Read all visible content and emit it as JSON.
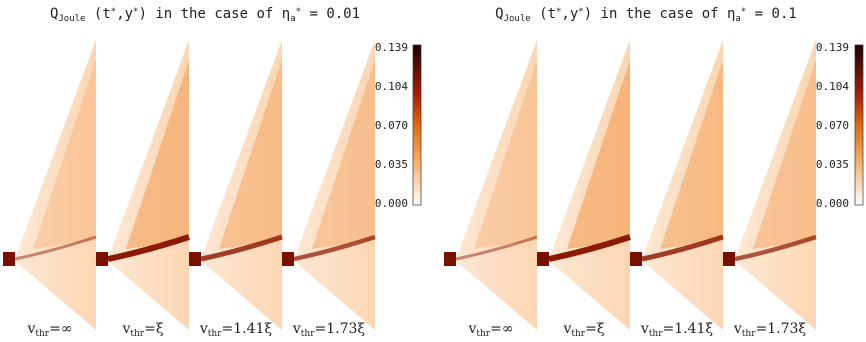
{
  "figures": [
    {
      "title": [
        {
          "t": "Q"
        },
        {
          "sub": "Joule"
        },
        {
          "t": " (t"
        },
        {
          "sup": "*"
        },
        {
          "t": ",y"
        },
        {
          "sup": "*"
        },
        {
          "t": ") in the case of η"
        },
        {
          "sub": "a"
        },
        {
          "sup": "*"
        },
        {
          "t": " = 0.01"
        }
      ],
      "panels": [
        [
          {
            "t": "v"
          },
          {
            "sub": "thr"
          },
          {
            "t": "=∞"
          }
        ],
        [
          {
            "t": "v"
          },
          {
            "sub": "thr"
          },
          {
            "t": "=ξ"
          }
        ],
        [
          {
            "t": "v"
          },
          {
            "sub": "thr"
          },
          {
            "t": "=1.41ξ"
          }
        ],
        [
          {
            "t": "v"
          },
          {
            "sub": "thr"
          },
          {
            "t": "=1.73ξ"
          }
        ]
      ],
      "colorbar": [
        "0.139",
        "0.104",
        "0.070",
        "0.035",
        "0.000"
      ]
    },
    {
      "title": [
        {
          "t": "Q"
        },
        {
          "sub": "Joule"
        },
        {
          "t": " (t"
        },
        {
          "sup": "*"
        },
        {
          "t": ",y"
        },
        {
          "sup": "*"
        },
        {
          "t": ") in the case of η"
        },
        {
          "sub": "a"
        },
        {
          "sup": "*"
        },
        {
          "t": " = 0.1"
        }
      ],
      "panels": [
        [
          {
            "t": "v"
          },
          {
            "sub": "thr"
          },
          {
            "t": "=∞"
          }
        ],
        [
          {
            "t": "v"
          },
          {
            "sub": "thr"
          },
          {
            "t": "=ξ"
          }
        ],
        [
          {
            "t": "v"
          },
          {
            "sub": "thr"
          },
          {
            "t": "=1.41ξ"
          }
        ],
        [
          {
            "t": "v"
          },
          {
            "sub": "thr"
          },
          {
            "t": "=1.73ξ"
          }
        ]
      ],
      "colorbar": [
        "0.139",
        "0.104",
        "0.070",
        "0.035",
        "0.000"
      ]
    }
  ]
}
